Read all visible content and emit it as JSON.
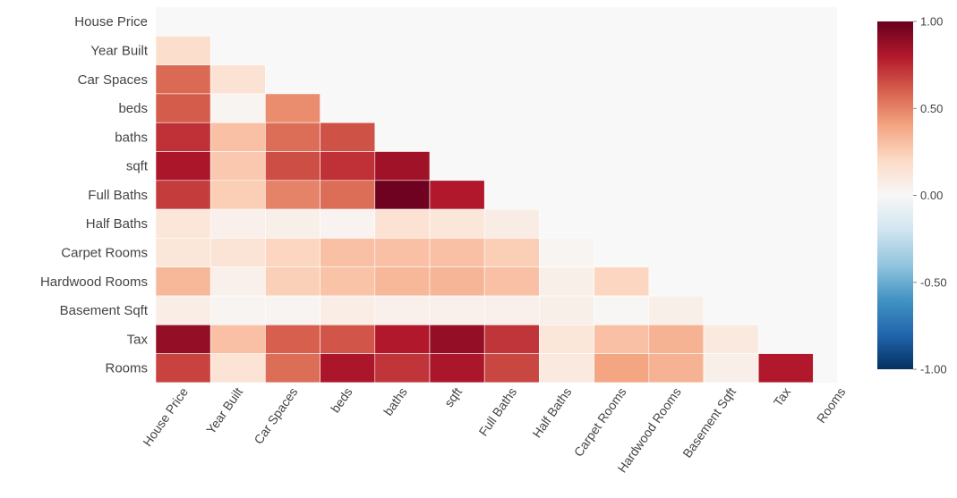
{
  "chart_data": {
    "type": "heatmap",
    "title": "",
    "variables": [
      "House Price",
      "Year Built",
      "Car Spaces",
      "beds",
      "baths",
      "sqft",
      "Full Baths",
      "Half Baths",
      "Carpet Rooms",
      "Hardwood Rooms",
      "Basement Sqft",
      "Tax",
      "Rooms"
    ],
    "rows": [
      {
        "label": "House Price",
        "values": []
      },
      {
        "label": "Year Built",
        "values": [
          0.18
        ]
      },
      {
        "label": "Car Spaces",
        "values": [
          0.57,
          0.15
        ]
      },
      {
        "label": "beds",
        "values": [
          0.61,
          0.02,
          0.47
        ]
      },
      {
        "label": "baths",
        "values": [
          0.73,
          0.3,
          0.56,
          0.64
        ]
      },
      {
        "label": "sqft",
        "values": [
          0.82,
          0.27,
          0.65,
          0.73,
          0.85
        ]
      },
      {
        "label": "Full Baths",
        "values": [
          0.7,
          0.25,
          0.5,
          0.56,
          0.98,
          0.8
        ]
      },
      {
        "label": "Half Baths",
        "values": [
          0.12,
          0.05,
          0.06,
          0.03,
          0.15,
          0.12,
          0.08
        ]
      },
      {
        "label": "Carpet Rooms",
        "values": [
          0.12,
          0.14,
          0.22,
          0.3,
          0.3,
          0.3,
          0.25,
          0.02
        ]
      },
      {
        "label": "Hardwood Rooms",
        "values": [
          0.33,
          0.05,
          0.24,
          0.29,
          0.33,
          0.34,
          0.3,
          0.06,
          0.22
        ]
      },
      {
        "label": "Basement Sqft",
        "values": [
          0.07,
          0.02,
          0.02,
          0.07,
          0.05,
          0.05,
          0.05,
          0.06,
          0.01,
          0.06
        ]
      },
      {
        "label": "Tax",
        "values": [
          0.88,
          0.3,
          0.6,
          0.63,
          0.8,
          0.88,
          0.72,
          0.12,
          0.3,
          0.35,
          0.1
        ]
      },
      {
        "label": "Rooms",
        "values": [
          0.68,
          0.14,
          0.56,
          0.82,
          0.72,
          0.82,
          0.67,
          0.1,
          0.4,
          0.35,
          0.06,
          0.8
        ]
      }
    ],
    "colorbar": {
      "vmin": -1.0,
      "vmax": 1.0,
      "ticks": [
        "1.00",
        "0.50",
        "0.00",
        "-0.50",
        "-1.00"
      ],
      "colormap": "RdBu_r",
      "colors": [
        "#053061",
        "#2166ac",
        "#4393c3",
        "#92c5de",
        "#d1e5f0",
        "#f7f7f7",
        "#fddbc7",
        "#f4a582",
        "#d6604d",
        "#b2182b",
        "#67001f"
      ]
    },
    "mask": "upper-triangle-including-diagonal",
    "background_color": "#f8f8f8",
    "grid": false
  }
}
